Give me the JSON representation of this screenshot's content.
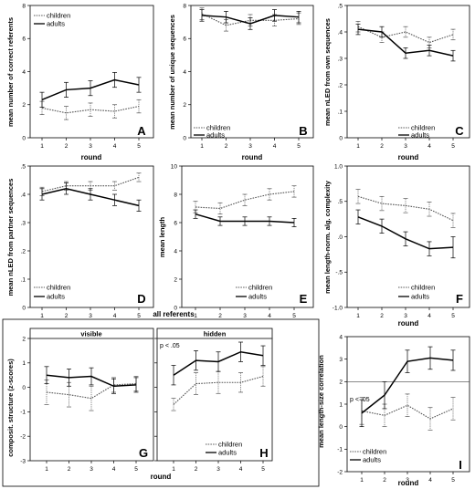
{
  "x_axis_label": "round",
  "all_referents_label": "all referents",
  "legend": {
    "children": "children",
    "adults": "adults"
  },
  "colors": {
    "children": "#555555",
    "adults": "#000000"
  },
  "chart_data": [
    {
      "id": "A",
      "letter": "A",
      "type": "line",
      "ylabel": "mean number of correct referents",
      "xlabel": "round",
      "ylim": [
        0,
        8
      ],
      "yticks": [
        "0",
        "2",
        "4",
        "6",
        "8"
      ],
      "ytick_values": [
        0,
        2,
        4,
        6,
        8
      ],
      "x": [
        1,
        2,
        3,
        4,
        5
      ],
      "series": [
        {
          "name": "children",
          "values": [
            1.8,
            1.5,
            1.7,
            1.6,
            1.9
          ],
          "err": [
            0.4,
            0.4,
            0.4,
            0.4,
            0.4
          ]
        },
        {
          "name": "adults",
          "values": [
            2.3,
            2.9,
            3.0,
            3.5,
            3.2
          ],
          "err": [
            0.45,
            0.45,
            0.45,
            0.45,
            0.45
          ]
        }
      ],
      "legend_placement": "top-left"
    },
    {
      "id": "B",
      "letter": "B",
      "type": "line",
      "ylabel": "mean number of unique sequences",
      "xlabel": "round",
      "ylim": [
        0,
        8
      ],
      "yticks": [
        "0",
        "2",
        "4",
        "6",
        "8"
      ],
      "ytick_values": [
        0,
        2,
        4,
        6,
        8
      ],
      "x": [
        1,
        2,
        3,
        4,
        5
      ],
      "series": [
        {
          "name": "children",
          "values": [
            7.5,
            6.8,
            7.1,
            7.1,
            7.2
          ],
          "err": [
            0.35,
            0.35,
            0.35,
            0.35,
            0.35
          ]
        },
        {
          "name": "adults",
          "values": [
            7.4,
            7.3,
            6.9,
            7.4,
            7.3
          ],
          "err": [
            0.35,
            0.35,
            0.35,
            0.35,
            0.35
          ]
        }
      ],
      "legend_placement": "bottom-left"
    },
    {
      "id": "C",
      "letter": "C",
      "type": "line",
      "ylabel": "mean nLED from own sequences",
      "xlabel": "round",
      "ylim": [
        0,
        0.5
      ],
      "yticks": [
        "0",
        ".1",
        ".2",
        ".3",
        ".4",
        ".5"
      ],
      "ytick_values": [
        0,
        0.1,
        0.2,
        0.3,
        0.4,
        0.5
      ],
      "x": [
        1,
        2,
        3,
        4,
        5
      ],
      "series": [
        {
          "name": "children",
          "values": [
            0.42,
            0.38,
            0.4,
            0.36,
            0.39
          ],
          "err": [
            0.02,
            0.02,
            0.02,
            0.02,
            0.02
          ]
        },
        {
          "name": "adults",
          "values": [
            0.41,
            0.4,
            0.32,
            0.33,
            0.31
          ],
          "err": [
            0.02,
            0.02,
            0.02,
            0.02,
            0.02
          ]
        }
      ],
      "legend_placement": "bottom-right"
    },
    {
      "id": "D",
      "letter": "D",
      "type": "line",
      "ylabel": "mean nLED from partner sequences",
      "xlabel": "",
      "ylim": [
        0,
        0.5
      ],
      "yticks": [
        "0",
        ".1",
        ".2",
        ".3",
        ".4",
        ".5"
      ],
      "ytick_values": [
        0,
        0.1,
        0.2,
        0.3,
        0.4,
        0.5
      ],
      "x": [
        1,
        2,
        3,
        4,
        5
      ],
      "series": [
        {
          "name": "children",
          "values": [
            0.41,
            0.43,
            0.43,
            0.43,
            0.46
          ],
          "err": [
            0.015,
            0.015,
            0.015,
            0.015,
            0.015
          ]
        },
        {
          "name": "adults",
          "values": [
            0.4,
            0.42,
            0.4,
            0.38,
            0.36
          ],
          "err": [
            0.02,
            0.02,
            0.02,
            0.02,
            0.02
          ]
        }
      ],
      "legend_placement": "bottom-left"
    },
    {
      "id": "E",
      "letter": "E",
      "type": "line",
      "ylabel": "mean length",
      "xlabel": "",
      "ylim": [
        0,
        10
      ],
      "yticks": [
        "0",
        "2",
        "4",
        "6",
        "8",
        "10"
      ],
      "ytick_values": [
        0,
        2,
        4,
        6,
        8,
        10
      ],
      "x": [
        1,
        2,
        3,
        4,
        5
      ],
      "series": [
        {
          "name": "children",
          "values": [
            7.1,
            7.0,
            7.6,
            8.0,
            8.2
          ],
          "err": [
            0.4,
            0.4,
            0.4,
            0.4,
            0.4
          ]
        },
        {
          "name": "adults",
          "values": [
            6.6,
            6.1,
            6.1,
            6.1,
            6.0
          ],
          "err": [
            0.3,
            0.3,
            0.3,
            0.3,
            0.3
          ]
        }
      ],
      "legend_placement": "bottom-right"
    },
    {
      "id": "F",
      "letter": "F",
      "type": "line",
      "ylabel": "mean length-norm. alg. complexity",
      "xlabel": "round",
      "ylim": [
        -1.0,
        1.0
      ],
      "yticks": [
        "-1.0",
        "-.5",
        ".0",
        ".5",
        "1.0"
      ],
      "ytick_values": [
        -1.0,
        -0.5,
        0,
        0.5,
        1.0
      ],
      "x": [
        1,
        2,
        3,
        4,
        5
      ],
      "series": [
        {
          "name": "children",
          "values": [
            0.57,
            0.47,
            0.44,
            0.39,
            0.23
          ],
          "err": [
            0.1,
            0.1,
            0.1,
            0.1,
            0.1
          ]
        },
        {
          "name": "adults",
          "values": [
            0.28,
            0.15,
            -0.03,
            -0.17,
            -0.15
          ],
          "err": [
            0.1,
            0.1,
            0.1,
            0.1,
            0.15
          ]
        }
      ],
      "legend_placement": "bottom-right"
    },
    {
      "id": "G",
      "letter": "G",
      "type": "line",
      "panel_title": "visible",
      "annotation": "",
      "ylabel": "composit. structure (z-scores)",
      "xlabel": "round",
      "ylim": [
        -3,
        2
      ],
      "yticks": [
        "-3",
        "-2",
        "-1",
        "0",
        "1",
        "2"
      ],
      "ytick_values": [
        -3,
        -2,
        -1,
        0,
        1,
        2
      ],
      "x": [
        1,
        2,
        3,
        4,
        5
      ],
      "series": [
        {
          "name": "children",
          "values": [
            -0.2,
            -0.3,
            -0.45,
            0.1,
            0.15
          ],
          "err": [
            0.5,
            0.5,
            0.5,
            0.3,
            0.3
          ]
        },
        {
          "name": "adults",
          "values": [
            0.5,
            0.4,
            0.45,
            0.05,
            0.1
          ],
          "err": [
            0.35,
            0.35,
            0.35,
            0.3,
            0.3
          ]
        }
      ],
      "legend_placement": "none"
    },
    {
      "id": "H",
      "letter": "H",
      "type": "line",
      "panel_title": "hidden",
      "annotation": "p < .05",
      "ylabel": "",
      "xlabel": "round",
      "ylim": [
        -3,
        2
      ],
      "yticks": [],
      "ytick_values": [
        -3,
        -2,
        -1,
        0,
        1,
        2
      ],
      "x": [
        1,
        2,
        3,
        4,
        5
      ],
      "series": [
        {
          "name": "children",
          "values": [
            -0.7,
            0.15,
            0.2,
            0.2,
            0.45
          ],
          "err": [
            0.25,
            0.45,
            0.45,
            0.4,
            0.4
          ]
        },
        {
          "name": "adults",
          "values": [
            0.5,
            1.1,
            1.05,
            1.45,
            1.3
          ],
          "err": [
            0.4,
            0.4,
            0.4,
            0.4,
            0.4
          ]
        }
      ],
      "legend_placement": "bottom-right"
    },
    {
      "id": "I",
      "letter": "I",
      "type": "line",
      "annotation": "p < .05",
      "ylabel": "mean length-size correlation",
      "xlabel": "round",
      "ylim": [
        -2,
        4
      ],
      "yticks": [
        "-2",
        "-1",
        "0",
        "1",
        "2",
        "3",
        "4"
      ],
      "ytick_values": [
        -2,
        -1,
        0,
        1,
        2,
        3,
        4
      ],
      "reference_line": 2,
      "x": [
        1,
        2,
        3,
        4,
        5
      ],
      "series": [
        {
          "name": "children",
          "values": [
            0.7,
            0.5,
            0.95,
            0.35,
            0.8
          ],
          "err": [
            0.6,
            0.5,
            0.5,
            0.5,
            0.5
          ]
        },
        {
          "name": "adults",
          "values": [
            0.6,
            1.4,
            2.9,
            3.05,
            2.95
          ],
          "err": [
            0.6,
            0.6,
            0.5,
            0.5,
            0.45
          ]
        }
      ],
      "legend_placement": "bottom-left"
    }
  ]
}
